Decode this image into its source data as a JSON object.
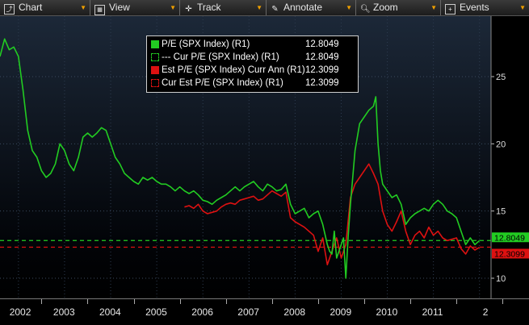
{
  "toolbar": {
    "chart": "Chart",
    "view": "View",
    "track": "Track",
    "annotate": "Annotate",
    "zoom": "Zoom",
    "events": "Events"
  },
  "legend": [
    {
      "label": "P/E (SPX Index) (R1)",
      "value": "12.8049",
      "color": "#22cc22",
      "style": "solid"
    },
    {
      "label": "--- Cur P/E (SPX Index) (R1)",
      "value": "12.8049",
      "color": "#22cc22",
      "style": "dashed"
    },
    {
      "label": "Est P/E (SPX Index) Curr Ann (R1)",
      "value": "12.3099",
      "color": "#dd1111",
      "style": "solid"
    },
    {
      "label": "Cur Est P/E (SPX Index) (R1)",
      "value": "12.3099",
      "color": "#dd1111",
      "style": "dashed"
    }
  ],
  "value_tags": {
    "pe": "12.8049",
    "est": "12.3099"
  },
  "chart_data": {
    "type": "line",
    "xlabel": "",
    "ylabel": "",
    "xlim": [
      2001.6,
      2012.25
    ],
    "ylim": [
      8.5,
      29.5
    ],
    "y_ticks": [
      10,
      15,
      20,
      25
    ],
    "x_ticks": [
      "2002",
      "2003",
      "2004",
      "2005",
      "2006",
      "2007",
      "2008",
      "2009",
      "2010",
      "2011",
      "2"
    ],
    "grid": true,
    "colors": {
      "pe": "#22cc22",
      "est": "#dd1111"
    },
    "series": [
      {
        "name": "P/E (SPX Index) (R1)",
        "x": [
          2001.6,
          2001.7,
          2001.8,
          2001.9,
          2002.0,
          2002.1,
          2002.2,
          2002.3,
          2002.4,
          2002.5,
          2002.6,
          2002.7,
          2002.8,
          2002.9,
          2003.0,
          2003.1,
          2003.2,
          2003.3,
          2003.4,
          2003.5,
          2003.6,
          2003.7,
          2003.8,
          2003.9,
          2004.0,
          2004.1,
          2004.2,
          2004.3,
          2004.4,
          2004.5,
          2004.6,
          2004.7,
          2004.8,
          2004.9,
          2005.0,
          2005.1,
          2005.2,
          2005.3,
          2005.4,
          2005.5,
          2005.6,
          2005.7,
          2005.8,
          2005.9,
          2006.0,
          2006.1,
          2006.2,
          2006.3,
          2006.4,
          2006.5,
          2006.6,
          2006.7,
          2006.8,
          2006.9,
          2007.0,
          2007.1,
          2007.2,
          2007.3,
          2007.4,
          2007.5,
          2007.6,
          2007.7,
          2007.8,
          2007.9,
          2008.0,
          2008.1,
          2008.2,
          2008.3,
          2008.4,
          2008.5,
          2008.6,
          2008.7,
          2008.75,
          2008.8,
          2008.85,
          2008.9,
          2008.95,
          2009.0,
          2009.05,
          2009.1,
          2009.15,
          2009.2,
          2009.3,
          2009.4,
          2009.5,
          2009.6,
          2009.7,
          2009.75,
          2009.8,
          2009.85,
          2009.9,
          2010.0,
          2010.1,
          2010.2,
          2010.3,
          2010.4,
          2010.5,
          2010.6,
          2010.7,
          2010.8,
          2010.9,
          2011.0,
          2011.1,
          2011.2,
          2011.3,
          2011.4,
          2011.5,
          2011.6,
          2011.7,
          2011.8,
          2011.9,
          2012.0
        ],
        "y": [
          26.5,
          27.8,
          27.0,
          27.2,
          26.5,
          24.0,
          21.0,
          19.5,
          19.0,
          18.0,
          17.5,
          17.8,
          18.5,
          20.0,
          19.5,
          18.5,
          18.0,
          19.0,
          20.5,
          20.8,
          20.5,
          20.8,
          21.2,
          21.0,
          20.0,
          19.0,
          18.5,
          17.8,
          17.5,
          17.2,
          17.0,
          17.5,
          17.3,
          17.5,
          17.2,
          17.0,
          17.0,
          16.8,
          16.5,
          16.8,
          16.5,
          16.3,
          16.5,
          16.2,
          15.8,
          15.7,
          15.5,
          15.8,
          16.0,
          16.2,
          16.5,
          16.8,
          16.5,
          16.8,
          17.0,
          17.2,
          16.8,
          16.5,
          17.0,
          16.8,
          16.5,
          16.6,
          17.0,
          15.5,
          14.8,
          15.0,
          15.2,
          14.5,
          14.8,
          15.0,
          14.0,
          12.5,
          12.0,
          11.8,
          13.5,
          11.5,
          12.0,
          12.5,
          13.0,
          10.0,
          13.0,
          15.5,
          19.5,
          21.5,
          22.0,
          22.5,
          22.8,
          23.5,
          20.0,
          18.0,
          17.0,
          16.5,
          16.0,
          16.2,
          15.5,
          14.0,
          14.5,
          14.8,
          15.0,
          15.2,
          15.0,
          15.5,
          15.8,
          15.5,
          15.0,
          14.8,
          14.5,
          13.5,
          12.5,
          13.0,
          12.5,
          12.8
        ],
        "color": "#22cc22"
      },
      {
        "name": "Est P/E (SPX Index) Curr Ann (R1)",
        "x": [
          2005.6,
          2005.7,
          2005.8,
          2005.9,
          2006.0,
          2006.1,
          2006.2,
          2006.3,
          2006.4,
          2006.5,
          2006.6,
          2006.7,
          2006.8,
          2006.9,
          2007.0,
          2007.1,
          2007.2,
          2007.3,
          2007.4,
          2007.5,
          2007.6,
          2007.7,
          2007.8,
          2007.9,
          2008.0,
          2008.1,
          2008.2,
          2008.3,
          2008.4,
          2008.5,
          2008.6,
          2008.7,
          2008.8,
          2008.9,
          2009.0,
          2009.1,
          2009.2,
          2009.3,
          2009.4,
          2009.5,
          2009.6,
          2009.7,
          2009.8,
          2009.9,
          2010.0,
          2010.1,
          2010.2,
          2010.3,
          2010.4,
          2010.5,
          2010.6,
          2010.7,
          2010.8,
          2010.9,
          2011.0,
          2011.1,
          2011.2,
          2011.3,
          2011.4,
          2011.5,
          2011.6,
          2011.7,
          2011.8,
          2011.9,
          2012.0
        ],
        "y": [
          15.3,
          15.4,
          15.2,
          15.5,
          15.0,
          14.8,
          14.9,
          15.0,
          15.3,
          15.5,
          15.6,
          15.5,
          15.8,
          15.9,
          16.0,
          16.1,
          15.8,
          15.9,
          16.2,
          16.5,
          16.3,
          16.1,
          16.4,
          14.5,
          14.2,
          14.0,
          13.8,
          13.5,
          13.2,
          12.0,
          13.0,
          11.0,
          12.0,
          13.0,
          11.5,
          12.5,
          16.0,
          17.0,
          17.5,
          18.0,
          18.5,
          17.8,
          17.0,
          15.0,
          14.0,
          13.5,
          14.2,
          15.0,
          13.5,
          12.5,
          13.2,
          13.5,
          13.0,
          13.8,
          13.2,
          13.5,
          13.0,
          12.8,
          12.9,
          13.0,
          12.2,
          11.8,
          12.4,
          12.1,
          12.3
        ],
        "color": "#dd1111"
      }
    ],
    "reference_lines": [
      {
        "name": "Cur P/E (SPX Index) (R1)",
        "value": 12.8049,
        "color": "#22cc22",
        "style": "dashed"
      },
      {
        "name": "Cur Est P/E (SPX Index) (R1)",
        "value": 12.3099,
        "color": "#dd1111",
        "style": "dashed"
      }
    ]
  }
}
